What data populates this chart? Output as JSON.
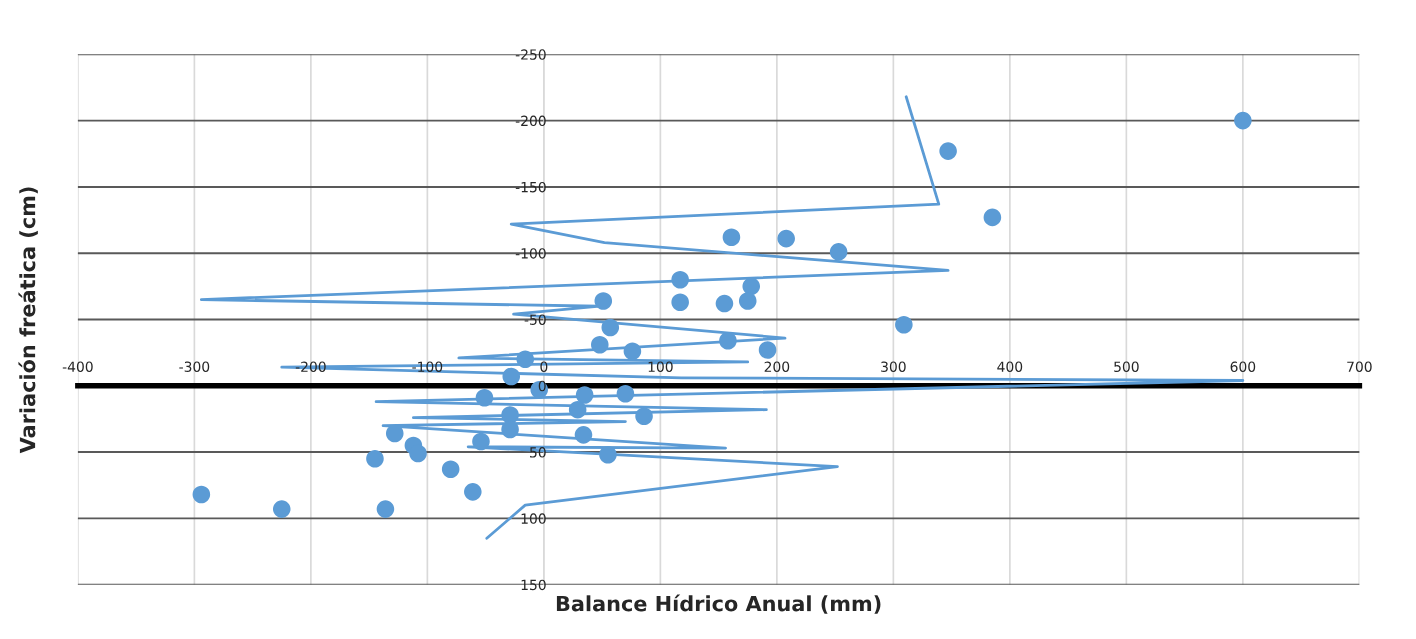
{
  "chart_data": {
    "type": "scatter",
    "xlabel": "Balance Hídrico Anual (mm)",
    "ylabel": "Variación freática (cm)",
    "series": [
      {
        "color": "#5b9bd5",
        "marker": "circle",
        "x": [
          600,
          347,
          385,
          161,
          208,
          253,
          117,
          178,
          51,
          117,
          155,
          175,
          309,
          57,
          48,
          158,
          76,
          192,
          -16,
          -28,
          -4,
          35,
          -51,
          70,
          29,
          86,
          -29,
          -29,
          34,
          -128,
          -54,
          -112,
          -108,
          -145,
          55,
          -80,
          -61,
          -294,
          -225,
          -136
        ],
        "values": [
          -200,
          -177,
          -127,
          -112,
          -111,
          -101,
          -80,
          -75,
          -64,
          -63,
          -62,
          -64,
          -46,
          -44,
          -31,
          -34,
          -26,
          -27,
          -20,
          -7,
          3,
          7,
          9,
          6,
          18,
          23,
          22,
          33,
          37,
          36,
          42,
          45,
          51,
          55,
          52,
          63,
          80,
          82,
          93,
          93
        ]
      },
      {
        "type": "line",
        "color": "#5b9bd5",
        "marker": "none",
        "line_style": "solid",
        "x": [
          -49,
          -16,
          252,
          -65,
          156,
          -138,
          70,
          -112,
          191,
          -144,
          600,
          118,
          -225,
          175,
          -73,
          207,
          -26,
          48,
          -294,
          347,
          52,
          -28,
          339,
          311
        ],
        "values": [
          115,
          90,
          61,
          46,
          47,
          30,
          27,
          24,
          18,
          12,
          -4,
          -6,
          -14,
          -18,
          -21,
          -36,
          -54,
          -60,
          -65,
          -87,
          -108,
          -122,
          -137,
          -218
        ]
      }
    ],
    "xlim": [
      -400,
      700
    ],
    "xticks": [
      -400,
      -300,
      -200,
      -100,
      0,
      100,
      200,
      300,
      400,
      500,
      600,
      700
    ],
    "ylim": [
      150,
      -250
    ],
    "yticks": [
      -250,
      -200,
      -150,
      -100,
      -50,
      0,
      50,
      100,
      150
    ],
    "grid": true,
    "legend": false
  }
}
